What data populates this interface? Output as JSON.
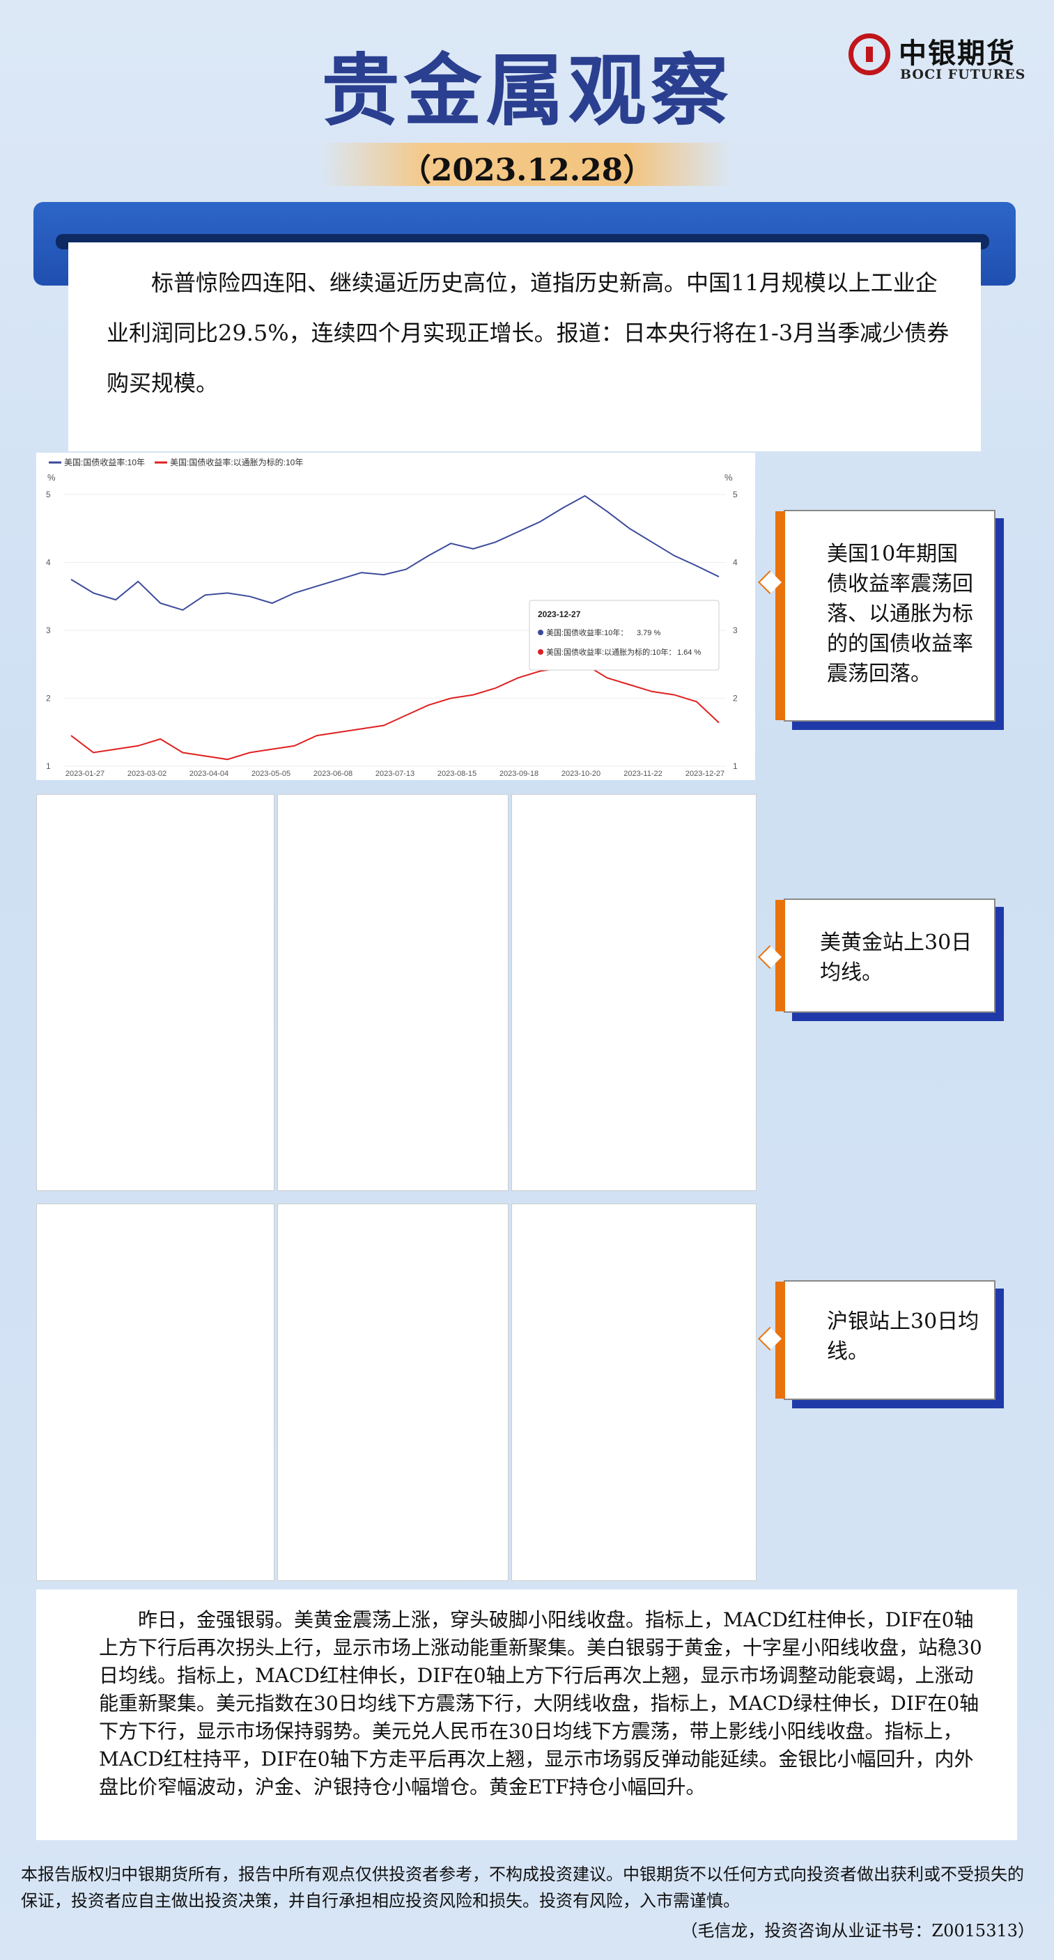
{
  "header": {
    "title": "贵金属观察",
    "date": "（2023.12.28）",
    "logo_cn": "中银期货",
    "logo_en": "BOCI FUTURES"
  },
  "summary": "标普惊险四连阳、继续逼近历史高位，道指历史新高。中国11月规模以上工业企业利润同比29.5%，连续四个月实现正增长。报道：日本央行将在1-3月当季减少债券购买规模。",
  "chart_data": {
    "type": "line",
    "title": "",
    "y_unit": "%",
    "ylim": [
      1,
      5
    ],
    "y_ticks": [
      "1",
      "2",
      "3",
      "4",
      "5"
    ],
    "x_ticks": [
      "2023-01-27",
      "2023-03-02",
      "2023-04-04",
      "2023-05-05",
      "2023-06-08",
      "2023-07-13",
      "2023-08-15",
      "2023-09-18",
      "2023-10-20",
      "2023-11-22",
      "2023-12-27"
    ],
    "series": [
      {
        "name": "美国:国债收益率:10年",
        "color": "#3b4a9b",
        "values": [
          3.75,
          3.55,
          3.45,
          3.72,
          3.4,
          3.3,
          3.52,
          3.55,
          3.5,
          3.4,
          3.55,
          3.65,
          3.75,
          3.85,
          3.82,
          3.9,
          4.1,
          4.28,
          4.2,
          4.3,
          4.45,
          4.6,
          4.8,
          4.98,
          4.75,
          4.5,
          4.3,
          4.1,
          3.95,
          3.79
        ]
      },
      {
        "name": "美国:国债收益率:以通胀为标的:10年",
        "color": "#e02020",
        "values": [
          1.45,
          1.2,
          1.25,
          1.3,
          1.4,
          1.2,
          1.15,
          1.1,
          1.2,
          1.25,
          1.3,
          1.45,
          1.5,
          1.55,
          1.6,
          1.75,
          1.9,
          2.0,
          2.05,
          2.15,
          2.3,
          2.4,
          2.45,
          2.5,
          2.3,
          2.2,
          2.1,
          2.05,
          1.95,
          1.64
        ]
      }
    ],
    "tooltip": {
      "date": "2023-12-27",
      "rows": [
        {
          "label": "美国:国债收益率:10年：",
          "value": "3.79 %"
        },
        {
          "label": "美国:国债收益率:以通胀为标的:10年：",
          "value": "1.64 %"
        }
      ]
    }
  },
  "callouts": {
    "c1": "美国10年期国债收益率震荡回落、以通胀为标的的国债收益率震荡回落。",
    "c2": "美黄金站上30日均线。",
    "c3": "沪银站上30日均线。"
  },
  "panel_colors": {
    "up": "#e02020",
    "down": "#18c018",
    "ma_red": "#e02020",
    "ma_black": "#000000",
    "ma_blue": "#2040c0"
  },
  "analysis": "昨日，金强银弱。美黄金震荡上涨，穿头破脚小阳线收盘。指标上，MACD红柱伸长，DIF在0轴上方下行后再次拐头上行，显示市场上涨动能重新聚集。美白银弱于黄金，十字星小阳线收盘，站稳30日均线。指标上，MACD红柱伸长，DIF在0轴上方下行后再次上翘，显示市场调整动能衰竭，上涨动能重新聚集。美元指数在30日均线下方震荡下行，大阴线收盘，指标上，MACD绿柱伸长，DIF在0轴下方下行，显示市场保持弱势。美元兑人民币在30日均线下方震荡，带上影线小阳线收盘。指标上，MACD红柱持平，DIF在0轴下方走平后再次上翘，显示市场弱反弹动能延续。金银比小幅回升，内外盘比价窄幅波动，沪金、沪银持仓小幅增仓。黄金ETF持仓小幅回升。",
  "footer": {
    "disclaimer": "本报告版权归中银期货所有，报告中所有观点仅供投资者参考，不构成投资建议。中银期货不以任何方式向投资者做出获利或不受损失的保证，投资者应自主做出投资决策，并自行承担相应投资风险和损失。投资有风险，入市需谨慎。",
    "author": "（毛信龙，投资咨询从业证书号：Z0015313）"
  }
}
